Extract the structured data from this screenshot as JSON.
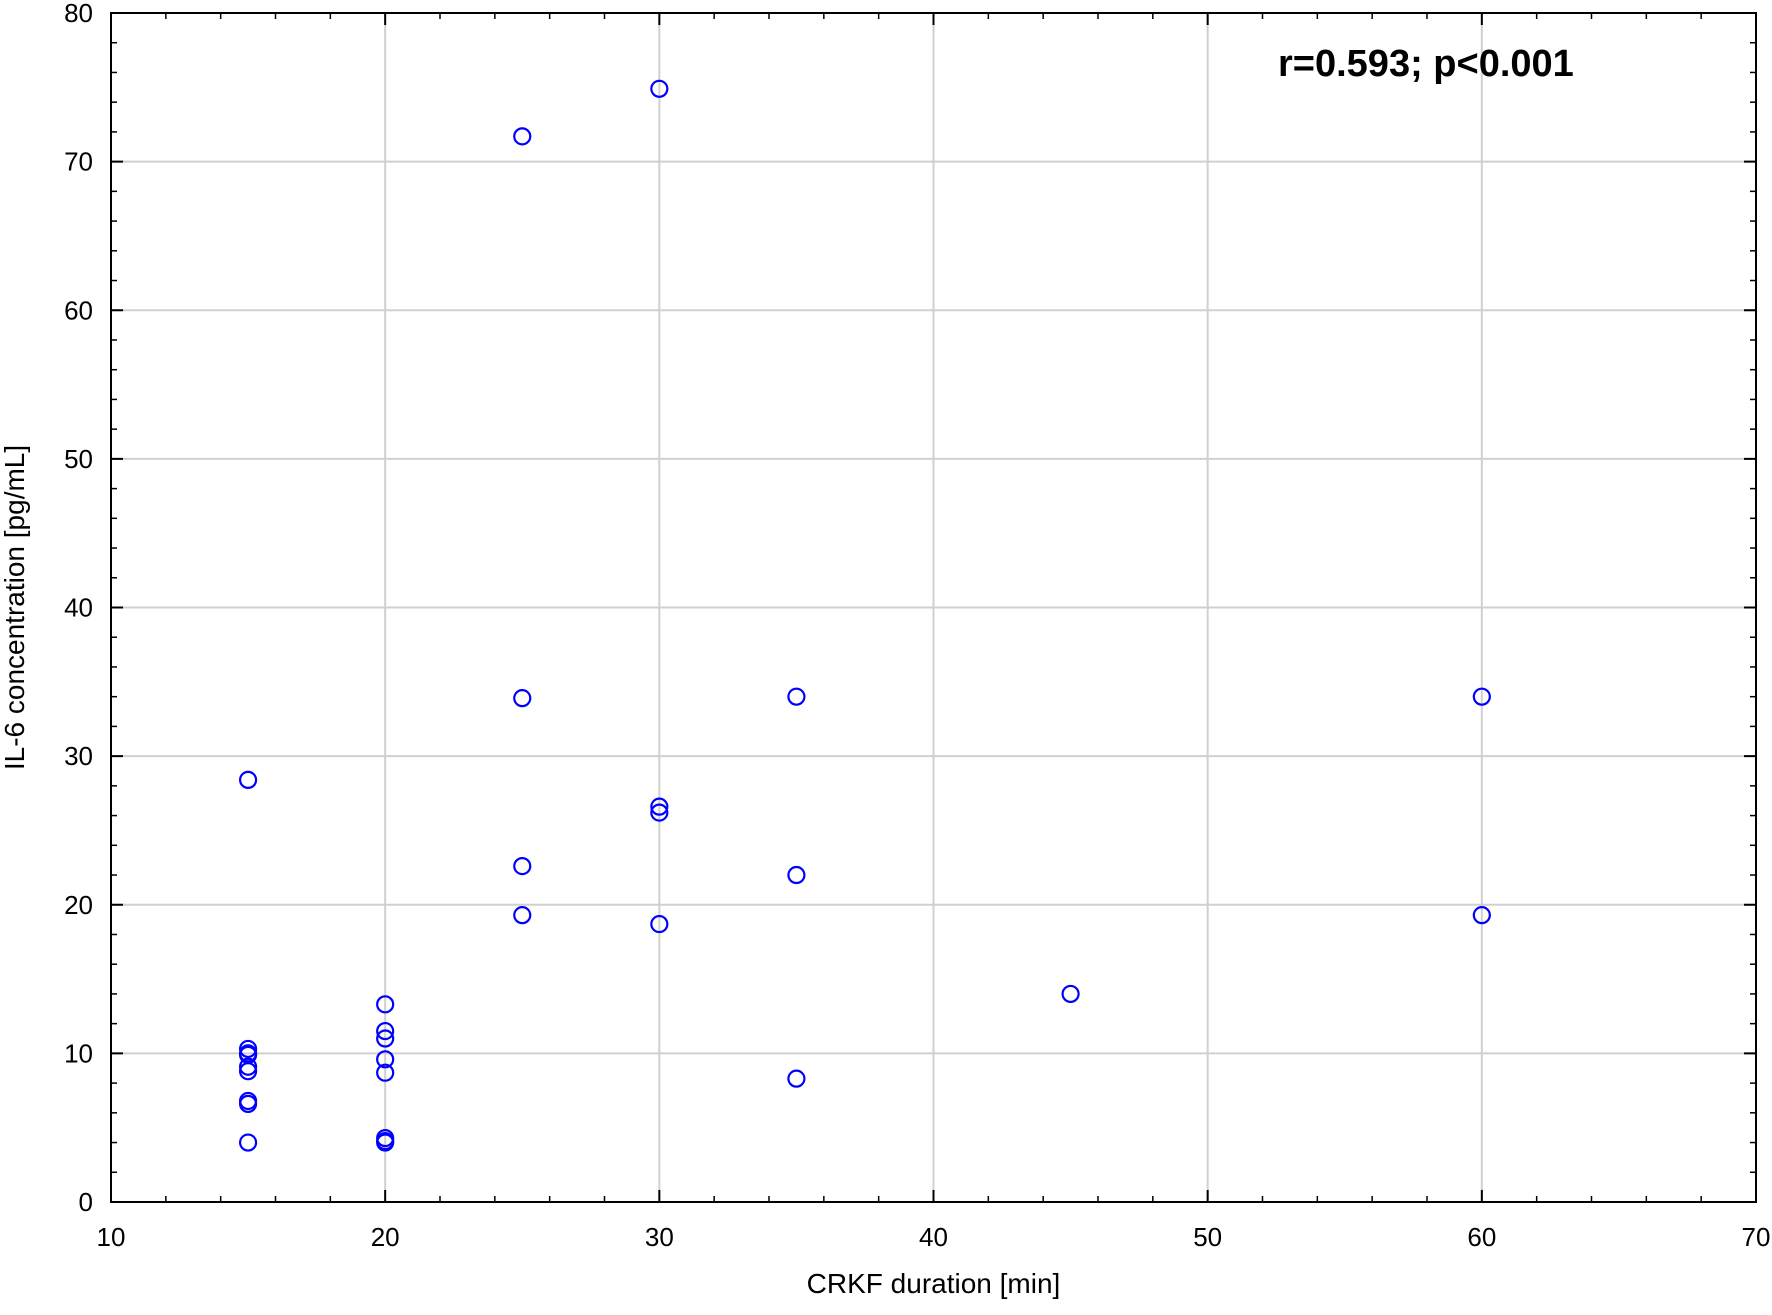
{
  "chart_data": {
    "type": "scatter",
    "title": "",
    "xlabel": "CRKF duration [min]",
    "ylabel": "IL-6 concentration [pg/mL]",
    "xlim": [
      10,
      70
    ],
    "ylim": [
      0,
      80
    ],
    "xticks": [
      10,
      20,
      30,
      40,
      50,
      60,
      70
    ],
    "yticks": [
      0,
      10,
      20,
      30,
      40,
      50,
      60,
      70,
      80
    ],
    "grid": true,
    "marker": "open-circle",
    "marker_color": "#0000ff",
    "annotation": "r=0.593; p<0.001",
    "series": [
      {
        "x": [
          15,
          15,
          15,
          15,
          15,
          15,
          15,
          15,
          15,
          20,
          20,
          20,
          20,
          20,
          20,
          20,
          20,
          25,
          25,
          25,
          25,
          30,
          30,
          30,
          30,
          35,
          35,
          35,
          45,
          60,
          60
        ],
        "y": [
          28.4,
          10.3,
          9.9,
          9.1,
          8.8,
          6.8,
          6.6,
          4.0,
          10.0,
          13.3,
          11.5,
          11.0,
          9.6,
          8.7,
          4.3,
          4.0,
          4.1,
          71.7,
          33.9,
          22.6,
          19.3,
          74.9,
          26.6,
          26.2,
          18.7,
          34.0,
          22.0,
          8.3,
          14.0,
          34.0,
          19.3
        ]
      }
    ]
  }
}
